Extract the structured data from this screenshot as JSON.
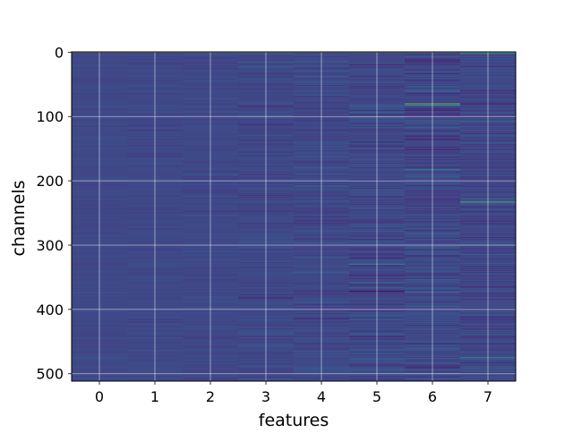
{
  "chart_data": {
    "type": "heatmap",
    "title": "",
    "xlabel": "features",
    "ylabel": "channels",
    "x_ticks": [
      0,
      1,
      2,
      3,
      4,
      5,
      6,
      7
    ],
    "y_ticks": [
      0,
      100,
      200,
      300,
      400,
      500
    ],
    "xlim": [
      -0.5,
      7.5
    ],
    "ylim": [
      511.5,
      -0.5
    ],
    "n_features": 8,
    "n_channels": 512,
    "grid": true,
    "colormap": "viridis",
    "column_spread": [
      0.035,
      0.045,
      0.05,
      0.07,
      0.08,
      0.1,
      0.12,
      0.11
    ],
    "highlights": [
      {
        "feature": 7,
        "channel": 2,
        "value": 0.75
      },
      {
        "feature": 6,
        "channel": 80,
        "value": 0.85
      },
      {
        "feature": 6,
        "channel": 82,
        "value": 0.8
      },
      {
        "feature": 7,
        "channel": 108,
        "value": 0.55
      },
      {
        "feature": 6,
        "channel": 183,
        "value": 0.65
      },
      {
        "feature": 7,
        "channel": 233,
        "value": 0.85
      },
      {
        "feature": 5,
        "channel": 330,
        "value": 0.65
      },
      {
        "feature": 5,
        "channel": 358,
        "value": 0.55
      },
      {
        "feature": 7,
        "channel": 475,
        "value": 0.7
      },
      {
        "feature": 5,
        "channel": 372,
        "value": 0.0
      },
      {
        "feature": 5,
        "channel": 140,
        "value": 0.08
      },
      {
        "feature": 6,
        "channel": 208,
        "value": 0.1
      }
    ]
  }
}
